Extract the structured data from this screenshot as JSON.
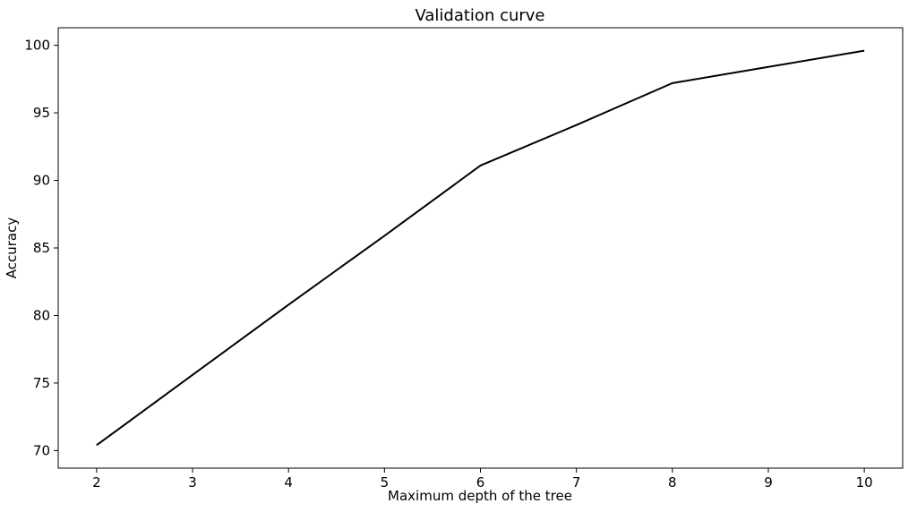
{
  "figure": {
    "background": "#ffffff"
  },
  "chart_data": {
    "type": "line",
    "title": "Validation curve",
    "xlabel": "Maximum depth of the tree",
    "ylabel": "Accuracy",
    "x": [
      2,
      3,
      4,
      5,
      6,
      7,
      8,
      9,
      10
    ],
    "series": [
      {
        "name": "validation-accuracy",
        "color": "#000000",
        "line_width": 2,
        "values": [
          70.4,
          75.6,
          80.8,
          85.9,
          91.1,
          94.1,
          97.2,
          98.4,
          99.6
        ]
      }
    ],
    "xticks": [
      2,
      3,
      4,
      5,
      6,
      7,
      8,
      9,
      10
    ],
    "yticks": [
      70,
      75,
      80,
      85,
      90,
      95,
      100
    ],
    "xlim": [
      1.6,
      10.4
    ],
    "ylim": [
      68.7,
      101.3
    ],
    "grid": false,
    "legend": null,
    "axis_color": "#000000",
    "text_color": "#000000"
  }
}
